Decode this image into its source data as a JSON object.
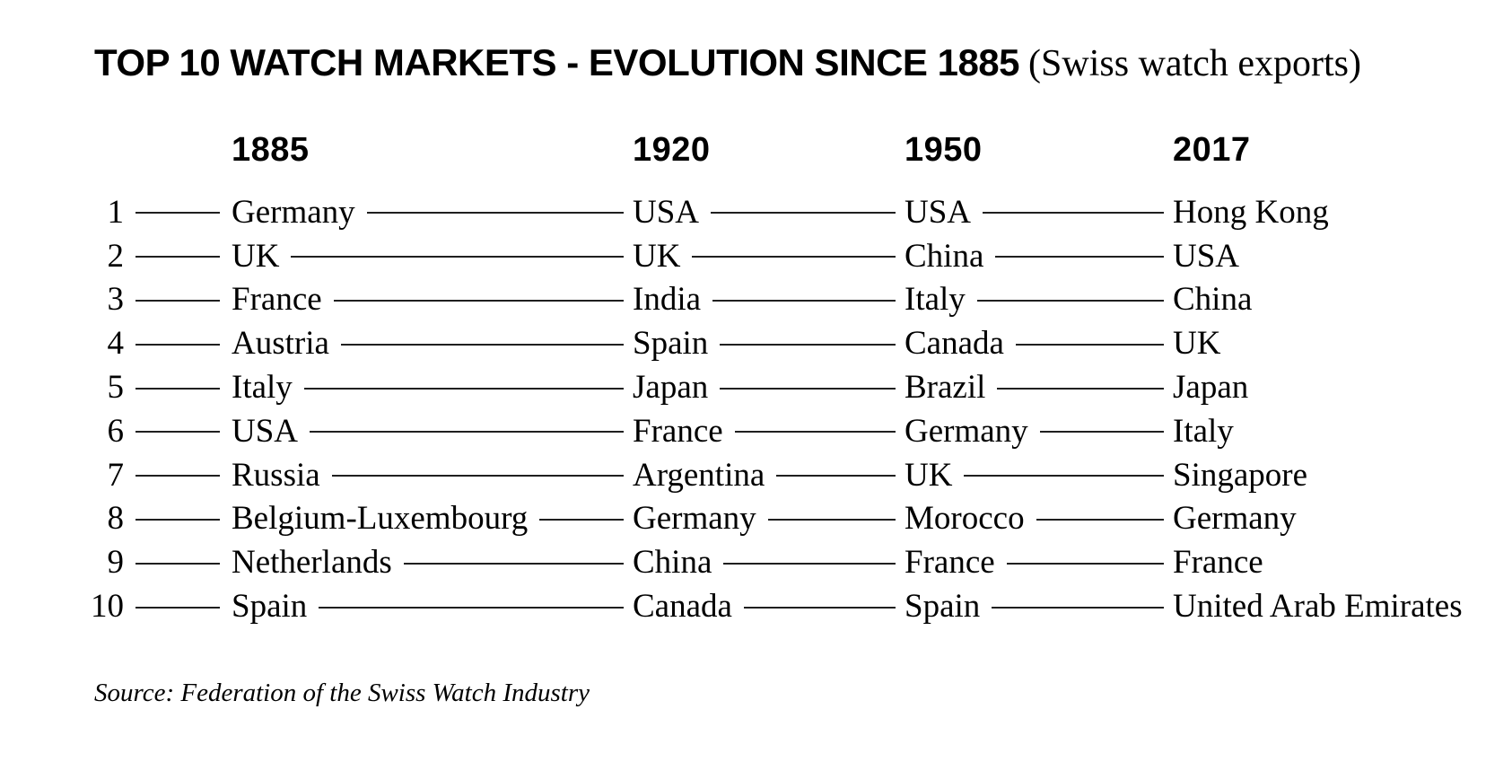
{
  "title": {
    "main": "TOP 10 WATCH MARKETS - EVOLUTION SINCE 1885",
    "note": "(Swiss watch exports)"
  },
  "chart_data": {
    "type": "table",
    "title": "TOP 10 WATCH MARKETS - EVOLUTION SINCE 1885 (Swiss watch exports)",
    "columns": [
      "1885",
      "1920",
      "1950",
      "2017"
    ],
    "rank_header": "",
    "rows": [
      {
        "rank": "1",
        "values": [
          "Germany",
          "USA",
          "USA",
          "Hong Kong"
        ]
      },
      {
        "rank": "2",
        "values": [
          "UK",
          "UK",
          "China",
          "USA"
        ]
      },
      {
        "rank": "3",
        "values": [
          "France",
          "India",
          "Italy",
          "China"
        ]
      },
      {
        "rank": "4",
        "values": [
          "Austria",
          "Spain",
          "Canada",
          "UK"
        ]
      },
      {
        "rank": "5",
        "values": [
          "Italy",
          "Japan",
          "Brazil",
          "Japan"
        ]
      },
      {
        "rank": "6",
        "values": [
          "USA",
          "France",
          "Germany",
          "Italy"
        ]
      },
      {
        "rank": "7",
        "values": [
          "Russia",
          "Argentina",
          "UK",
          "Singapore"
        ]
      },
      {
        "rank": "8",
        "values": [
          "Belgium-Luxembourg",
          "Germany",
          "Morocco",
          "Germany"
        ]
      },
      {
        "rank": "9",
        "values": [
          "Netherlands",
          "China",
          "France",
          "France"
        ]
      },
      {
        "rank": "10",
        "values": [
          "Spain",
          "Canada",
          "Spain",
          "United Arab Emirates"
        ]
      }
    ],
    "source": "Source: Federation of the Swiss Watch Industry",
    "layout": {
      "legend": "none",
      "grid": "off"
    }
  },
  "colors": {
    "text": "#000000",
    "line": "#1f1f1f",
    "background": "#ffffff"
  }
}
